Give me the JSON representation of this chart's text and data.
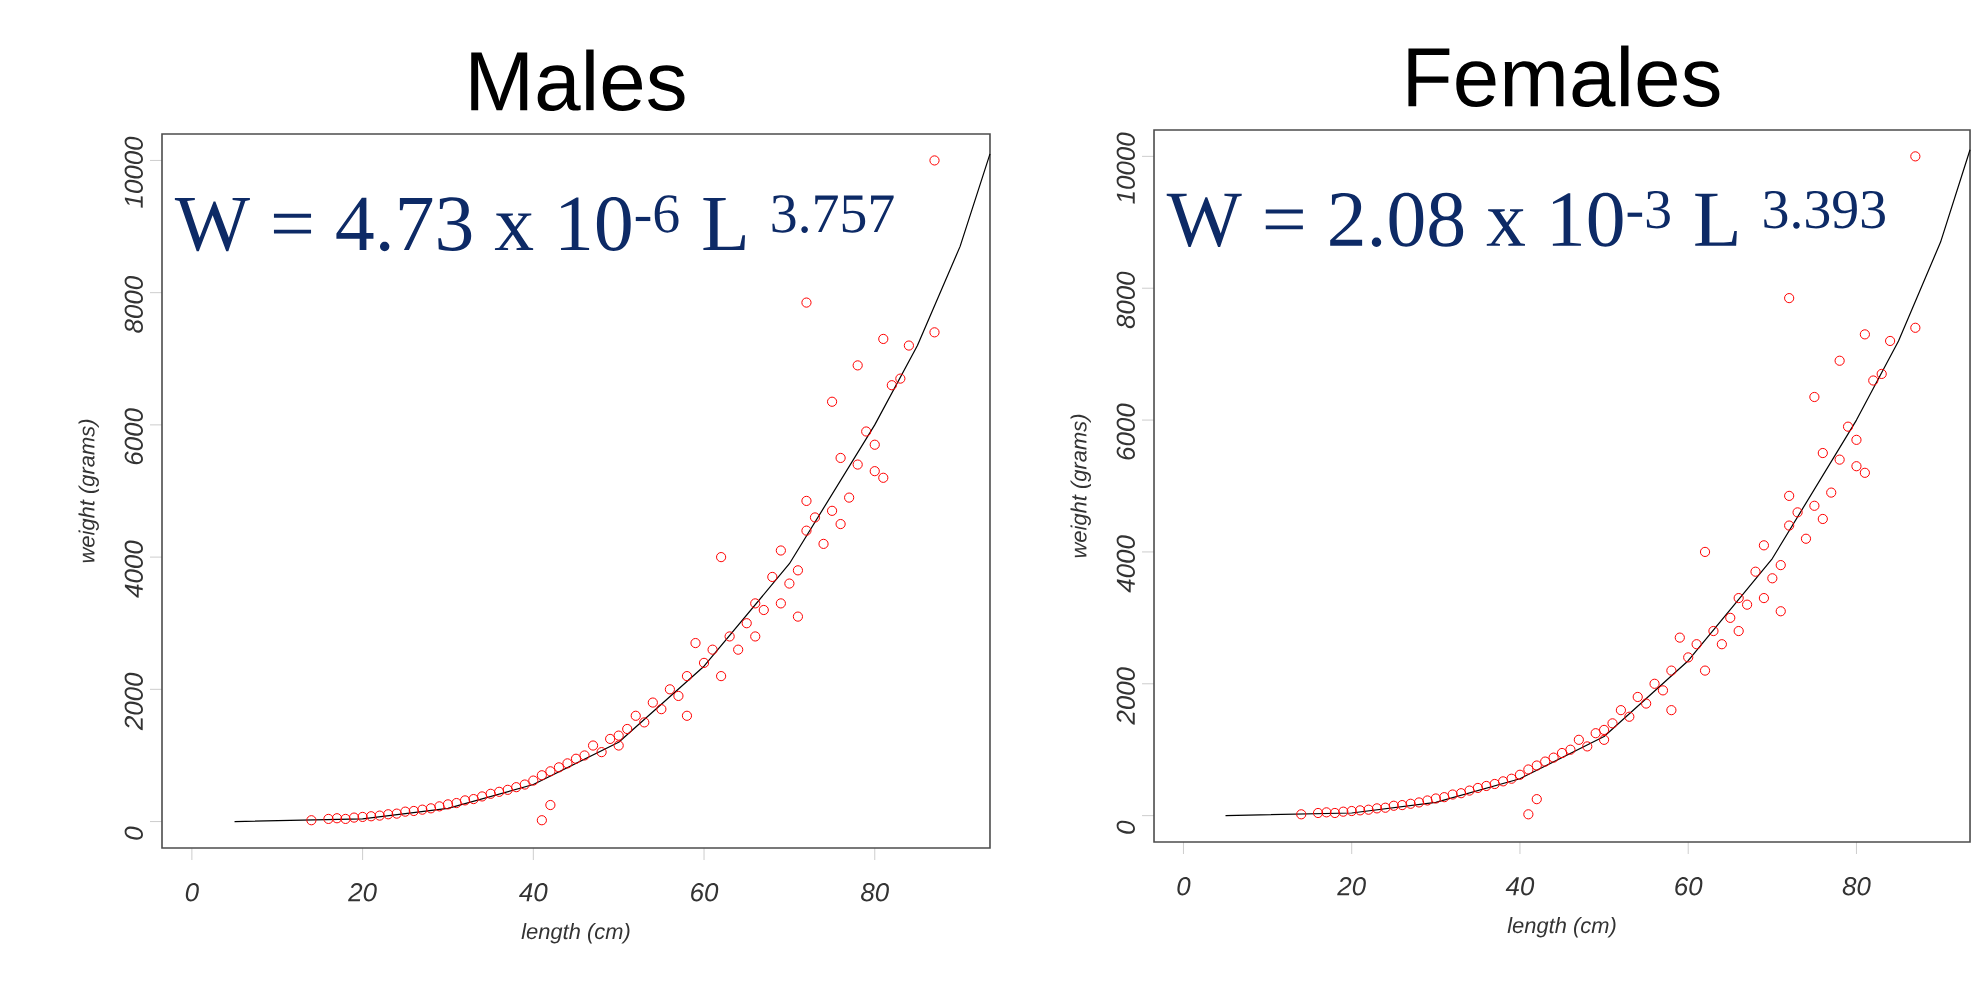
{
  "chart_data": [
    {
      "type": "scatter",
      "title": "Males",
      "xlabel": "length (cm)",
      "ylabel": "weight (grams)",
      "xlim": [
        -3.5,
        93.5
      ],
      "ylim": [
        -400,
        10400
      ],
      "xticks": [
        0,
        20,
        40,
        60,
        80
      ],
      "yticks": [
        0,
        2000,
        4000,
        6000,
        8000,
        10000
      ],
      "grid": false,
      "annotations": [
        "W = 4.73 x 10$^{-6}$ L $^{3.757}$"
      ],
      "series": [
        {
          "marker": "circle",
          "color": "#ff0000",
          "x": [
            14,
            16,
            17,
            18,
            19,
            20,
            21,
            22,
            23,
            24,
            25,
            26,
            27,
            28,
            29,
            30,
            31,
            32,
            33,
            34,
            35,
            36,
            37,
            38,
            39,
            40,
            41,
            42,
            41,
            42,
            43,
            44,
            45,
            46,
            47,
            48,
            49,
            50,
            50,
            51,
            52,
            53,
            54,
            55,
            56,
            57,
            58,
            58,
            59,
            60,
            61,
            62,
            62,
            63,
            64,
            65,
            66,
            66,
            67,
            68,
            69,
            69,
            70,
            71,
            71,
            72,
            72,
            72,
            73,
            74,
            75,
            75,
            76,
            76,
            77,
            78,
            78,
            79,
            80,
            80,
            81,
            81,
            82,
            83,
            84,
            87,
            87
          ],
          "values": [
            20,
            40,
            50,
            40,
            60,
            70,
            80,
            90,
            110,
            120,
            150,
            160,
            180,
            200,
            230,
            260,
            280,
            320,
            340,
            380,
            420,
            450,
            480,
            520,
            560,
            620,
            20,
            250,
            700,
            760,
            820,
            880,
            950,
            1000,
            1150,
            1050,
            1250,
            1300,
            1150,
            1400,
            1600,
            1500,
            1800,
            1700,
            2000,
            1900,
            2200,
            1600,
            2700,
            2400,
            2600,
            4000,
            2200,
            2800,
            2600,
            3000,
            3300,
            2800,
            3200,
            3700,
            4100,
            3300,
            3600,
            3800,
            3100,
            4400,
            7850,
            4850,
            4600,
            4200,
            6350,
            4700,
            5500,
            4500,
            4900,
            6900,
            5400,
            5900,
            5700,
            5300,
            7300,
            5200,
            6600,
            6700,
            7200,
            7400,
            10000
          ]
        },
        {
          "type": "line",
          "color": "#000000",
          "x": [
            5,
            20,
            30,
            40,
            50,
            60,
            70,
            80,
            85,
            90,
            93.5
          ],
          "values": [
            0,
            40,
            200,
            560,
            1200,
            2350,
            3900,
            6000,
            7200,
            8700,
            10100
          ]
        }
      ]
    },
    {
      "type": "scatter",
      "title": "Females",
      "xlabel": "length (cm)",
      "ylabel": "weight (grams)",
      "xlim": [
        -3.5,
        93.5
      ],
      "ylim": [
        -400,
        10400
      ],
      "xticks": [
        0,
        20,
        40,
        60,
        80
      ],
      "yticks": [
        0,
        2000,
        4000,
        6000,
        8000,
        10000
      ],
      "grid": false,
      "annotations": [
        "W = 2.08 x 10$^{-3}$ L $^{3.393}$"
      ],
      "series": [
        {
          "marker": "circle",
          "color": "#ff0000",
          "x": [
            14,
            16,
            17,
            18,
            19,
            20,
            21,
            22,
            23,
            24,
            25,
            26,
            27,
            28,
            29,
            30,
            31,
            32,
            33,
            34,
            35,
            36,
            37,
            38,
            39,
            40,
            41,
            42,
            41,
            42,
            43,
            44,
            45,
            46,
            47,
            48,
            49,
            50,
            50,
            51,
            52,
            53,
            54,
            55,
            56,
            57,
            58,
            58,
            59,
            60,
            61,
            62,
            62,
            63,
            64,
            65,
            66,
            66,
            67,
            68,
            69,
            69,
            70,
            71,
            71,
            72,
            72,
            72,
            73,
            74,
            75,
            75,
            76,
            76,
            77,
            78,
            78,
            79,
            80,
            80,
            81,
            81,
            82,
            83,
            84,
            87,
            87
          ],
          "values": [
            20,
            40,
            50,
            40,
            60,
            70,
            80,
            90,
            110,
            120,
            150,
            160,
            180,
            200,
            230,
            260,
            280,
            320,
            340,
            380,
            420,
            450,
            480,
            520,
            560,
            620,
            20,
            250,
            700,
            760,
            820,
            880,
            950,
            1000,
            1150,
            1050,
            1250,
            1300,
            1150,
            1400,
            1600,
            1500,
            1800,
            1700,
            2000,
            1900,
            2200,
            1600,
            2700,
            2400,
            2600,
            4000,
            2200,
            2800,
            2600,
            3000,
            3300,
            2800,
            3200,
            3700,
            4100,
            3300,
            3600,
            3800,
            3100,
            4400,
            7850,
            4850,
            4600,
            4200,
            6350,
            4700,
            5500,
            4500,
            4900,
            6900,
            5400,
            5900,
            5700,
            5300,
            7300,
            5200,
            6600,
            6700,
            7200,
            7400,
            10000
          ]
        },
        {
          "type": "line",
          "color": "#000000",
          "x": [
            5,
            20,
            30,
            40,
            50,
            60,
            70,
            80,
            85,
            90,
            93.5
          ],
          "values": [
            0,
            40,
            200,
            560,
            1200,
            2350,
            3900,
            6000,
            7200,
            8700,
            10100
          ]
        }
      ]
    }
  ]
}
